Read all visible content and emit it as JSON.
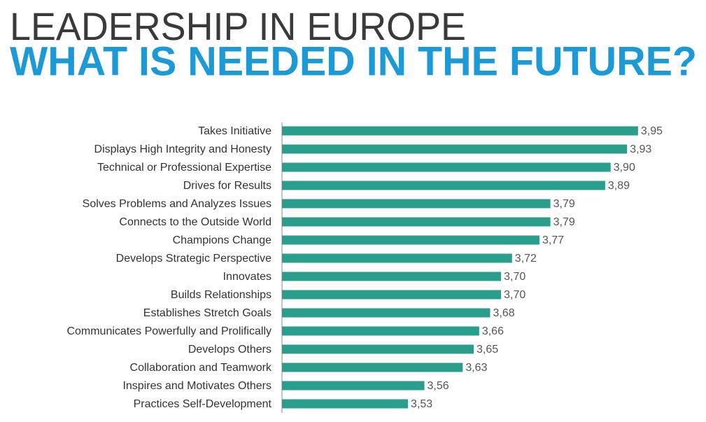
{
  "chart_data": {
    "type": "barh",
    "title": "LEADERSHIP IN EUROPE",
    "subtitle": "WHAT IS NEEDED IN THE FUTURE?",
    "categories": [
      "Takes Initiative",
      "Displays High Integrity and Honesty",
      "Technical or Professional Expertise",
      "Drives for Results",
      "Solves Problems and Analyzes Issues",
      "Connects to the Outside World",
      "Champions Change",
      "Develops Strategic Perspective",
      "Innovates",
      "Builds Relationships",
      "Establishes Stretch Goals",
      "Communicates Powerfully and Prolifically",
      "Develops Others",
      "Collaboration and Teamwork",
      "Inspires and Motivates Others",
      "Practices Self-Development"
    ],
    "values": [
      3.95,
      3.93,
      3.9,
      3.89,
      3.79,
      3.79,
      3.77,
      3.72,
      3.7,
      3.7,
      3.68,
      3.66,
      3.65,
      3.63,
      3.56,
      3.53
    ],
    "value_labels": [
      "3,95",
      "3,93",
      "3,90",
      "3,89",
      "3,79",
      "3,79",
      "3,77",
      "3,72",
      "3,70",
      "3,70",
      "3,68",
      "3,66",
      "3,65",
      "3,63",
      "3,56",
      "3,53"
    ],
    "color": "#2a9d8c",
    "xlim": [
      3.3,
      4.0
    ]
  }
}
